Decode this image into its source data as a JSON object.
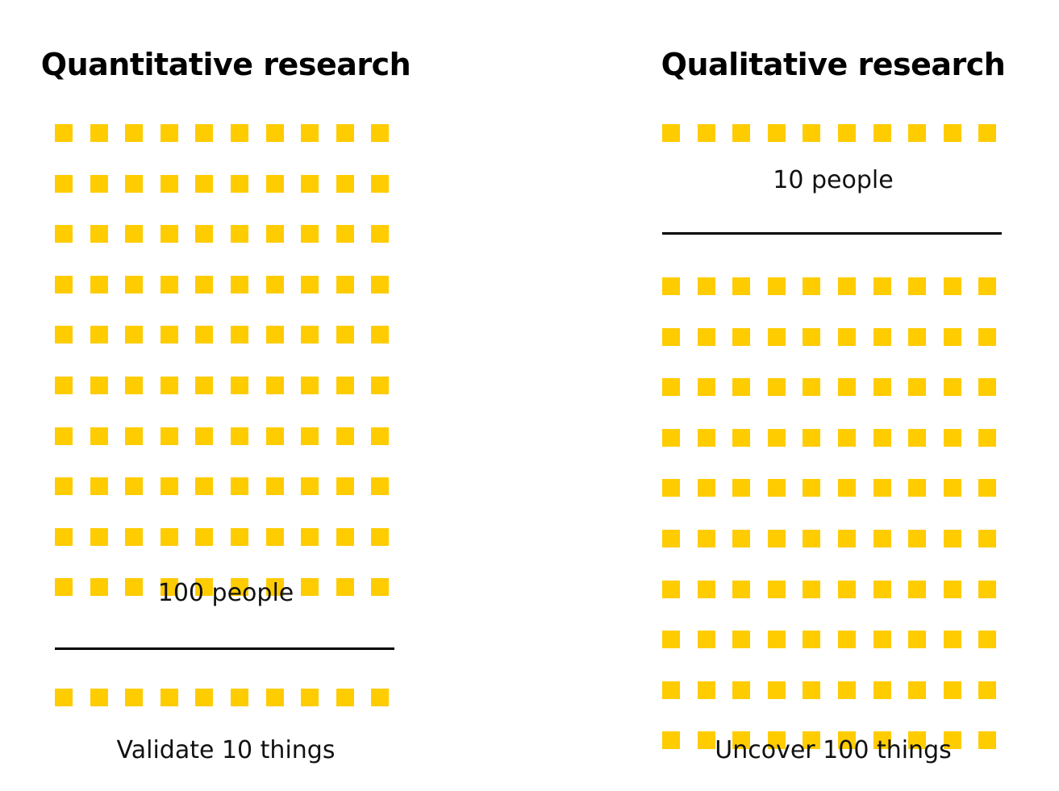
{
  "colors": {
    "square": "#ffcc00",
    "text": "#000000",
    "divider": "#000000",
    "background": "#ffffff"
  },
  "quantitative": {
    "title": "Quantitative research",
    "participants_label": "100 people",
    "participants_count": 100,
    "outcome_label": "Validate 10 things",
    "outcome_count": 10
  },
  "qualitative": {
    "title": "Qualitative research",
    "participants_label": "10 people",
    "participants_count": 10,
    "outcome_label": "Uncover 100 things",
    "outcome_count": 100
  }
}
